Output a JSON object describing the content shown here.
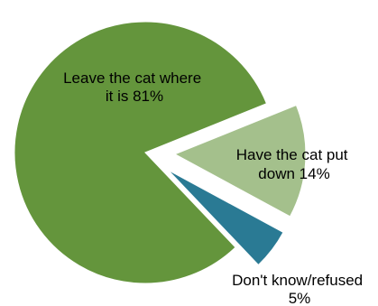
{
  "chart_data": {
    "type": "pie",
    "exploded": true,
    "legend": "none",
    "slices": [
      {
        "label_lines": [
          "Leave the cat where",
          "it is  81%"
        ],
        "category": "Leave the cat where it is",
        "value": 81,
        "color": "#64953c"
      },
      {
        "label_lines": [
          "Have the cat put",
          "down  14%"
        ],
        "category": "Have the cat put down",
        "value": 14,
        "color": "#a4c08c"
      },
      {
        "label_lines": [
          "Don't know/refused",
          "5%"
        ],
        "category": "Don't know/refused",
        "value": 5,
        "color": "#2a7a94"
      }
    ]
  }
}
